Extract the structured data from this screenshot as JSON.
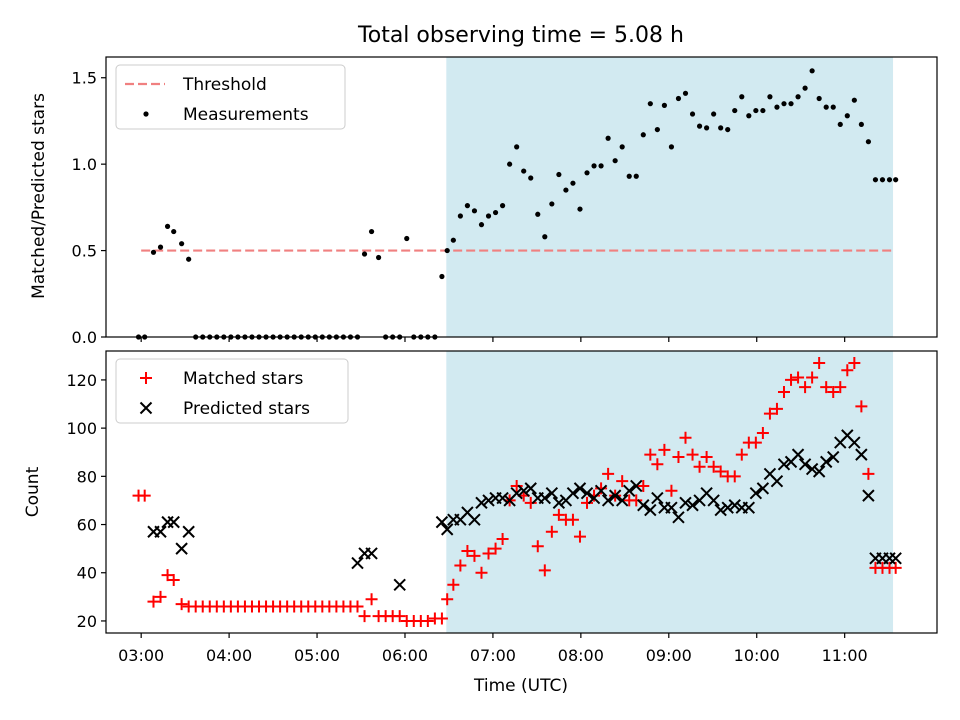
{
  "chart_data": [
    {
      "type": "scatter",
      "title": "Total observing time = 5.08 h",
      "ylabel": "Matched/Predicted stars",
      "xlabel": "",
      "xlim": [
        2.6,
        12.05
      ],
      "ylim": [
        0,
        1.62
      ],
      "yticks": [
        0.0,
        0.5,
        1.0,
        1.5
      ],
      "ytick_labels": [
        "0.0",
        "0.5",
        "1.0",
        "1.5"
      ],
      "xticks": [
        3,
        4,
        5,
        6,
        7,
        8,
        9,
        10,
        11
      ],
      "shaded_region": {
        "x": [
          6.47,
          11.55
        ],
        "color": "#add8e6"
      },
      "legend_position": "upper left",
      "series": [
        {
          "name": "Threshold",
          "style": "dashed-line",
          "color": "#f08080",
          "x": [
            3.0,
            11.55
          ],
          "y": [
            0.5,
            0.5
          ]
        },
        {
          "name": "Measurements",
          "style": "dots",
          "color": "#000000",
          "x": [
            2.97,
            3.04,
            3.14,
            3.22,
            3.3,
            3.37,
            3.46,
            3.54,
            3.62,
            3.7,
            3.78,
            3.86,
            3.94,
            4.02,
            4.1,
            4.18,
            4.26,
            4.34,
            4.42,
            4.5,
            4.58,
            4.66,
            4.74,
            4.82,
            4.9,
            4.98,
            5.06,
            5.14,
            5.22,
            5.3,
            5.38,
            5.46,
            5.54,
            5.62,
            5.7,
            5.78,
            5.86,
            5.94,
            6.02,
            6.1,
            6.18,
            6.26,
            6.34,
            6.42,
            6.48,
            6.55,
            6.63,
            6.71,
            6.79,
            6.87,
            6.95,
            7.03,
            7.11,
            7.19,
            7.27,
            7.35,
            7.43,
            7.51,
            7.59,
            7.67,
            7.75,
            7.83,
            7.91,
            7.99,
            8.07,
            8.15,
            8.23,
            8.31,
            8.39,
            8.47,
            8.55,
            8.63,
            8.71,
            8.79,
            8.87,
            8.95,
            9.03,
            9.11,
            9.19,
            9.27,
            9.35,
            9.43,
            9.51,
            9.59,
            9.67,
            9.75,
            9.83,
            9.91,
            9.99,
            10.07,
            10.15,
            10.23,
            10.31,
            10.39,
            10.47,
            10.55,
            10.63,
            10.71,
            10.79,
            10.87,
            10.95,
            11.03,
            11.11,
            11.19,
            11.27,
            11.35,
            11.43,
            11.51,
            11.58
          ],
          "y": [
            0.0,
            0.0,
            0.49,
            0.52,
            0.64,
            0.61,
            0.54,
            0.45,
            0.0,
            0.0,
            0.0,
            0.0,
            0.0,
            0.0,
            0.0,
            0.0,
            0.0,
            0.0,
            0.0,
            0.0,
            0.0,
            0.0,
            0.0,
            0.0,
            0.0,
            0.0,
            0.0,
            0.0,
            0.0,
            0.0,
            0.0,
            0.0,
            0.48,
            0.61,
            0.46,
            0.0,
            0.0,
            0.0,
            0.57,
            0.0,
            0.0,
            0.0,
            0.0,
            0.35,
            0.5,
            0.56,
            0.7,
            0.76,
            0.73,
            0.65,
            0.7,
            0.72,
            0.76,
            1.0,
            1.1,
            0.96,
            0.92,
            0.71,
            0.58,
            0.77,
            0.94,
            0.85,
            0.89,
            0.74,
            0.95,
            0.99,
            0.99,
            1.15,
            1.02,
            1.1,
            0.93,
            0.93,
            1.17,
            1.35,
            1.2,
            1.34,
            1.1,
            1.38,
            1.41,
            1.29,
            1.22,
            1.21,
            1.29,
            1.21,
            1.2,
            1.31,
            1.39,
            1.28,
            1.31,
            1.31,
            1.39,
            1.33,
            1.35,
            1.35,
            1.39,
            1.44,
            1.54,
            1.38,
            1.33,
            1.33,
            1.23,
            1.28,
            1.37,
            1.23,
            1.13,
            0.91,
            0.91,
            0.91,
            0.91
          ]
        }
      ]
    },
    {
      "type": "scatter",
      "title": "",
      "ylabel": "Count",
      "xlabel": "Time (UTC)",
      "xlim": [
        2.6,
        12.05
      ],
      "ylim": [
        15,
        132
      ],
      "yticks": [
        20,
        40,
        60,
        80,
        100,
        120
      ],
      "ytick_labels": [
        "20",
        "40",
        "60",
        "80",
        "100",
        "120"
      ],
      "xticks": [
        3,
        4,
        5,
        6,
        7,
        8,
        9,
        10,
        11
      ],
      "xtick_labels": [
        "03:00",
        "04:00",
        "05:00",
        "06:00",
        "07:00",
        "08:00",
        "09:00",
        "10:00",
        "11:00"
      ],
      "shaded_region": {
        "x": [
          6.47,
          11.55
        ],
        "color": "#add8e6"
      },
      "legend_position": "upper left",
      "series": [
        {
          "name": "Matched stars",
          "marker": "plus",
          "color": "#ff0000",
          "x": [
            2.97,
            3.04,
            3.14,
            3.22,
            3.3,
            3.37,
            3.46,
            3.54,
            3.62,
            3.7,
            3.78,
            3.86,
            3.94,
            4.02,
            4.1,
            4.18,
            4.26,
            4.34,
            4.42,
            4.5,
            4.58,
            4.66,
            4.74,
            4.82,
            4.9,
            4.98,
            5.06,
            5.14,
            5.22,
            5.3,
            5.38,
            5.46,
            5.54,
            5.62,
            5.7,
            5.78,
            5.86,
            5.94,
            6.02,
            6.1,
            6.18,
            6.26,
            6.34,
            6.42,
            6.48,
            6.55,
            6.63,
            6.71,
            6.79,
            6.87,
            6.95,
            7.03,
            7.11,
            7.19,
            7.27,
            7.35,
            7.43,
            7.51,
            7.59,
            7.67,
            7.75,
            7.83,
            7.91,
            7.99,
            8.07,
            8.15,
            8.23,
            8.31,
            8.39,
            8.47,
            8.55,
            8.63,
            8.71,
            8.79,
            8.87,
            8.95,
            9.03,
            9.11,
            9.19,
            9.27,
            9.35,
            9.43,
            9.51,
            9.59,
            9.67,
            9.75,
            9.83,
            9.91,
            9.99,
            10.07,
            10.15,
            10.23,
            10.31,
            10.39,
            10.47,
            10.55,
            10.63,
            10.71,
            10.79,
            10.87,
            10.95,
            11.03,
            11.11,
            11.19,
            11.27,
            11.35,
            11.43,
            11.51,
            11.58
          ],
          "y": [
            72,
            72,
            28,
            30,
            39,
            37,
            27,
            26,
            26,
            26,
            26,
            26,
            26,
            26,
            26,
            26,
            26,
            26,
            26,
            26,
            26,
            26,
            26,
            26,
            26,
            26,
            26,
            26,
            26,
            26,
            26,
            26,
            22,
            29,
            22,
            22,
            22,
            22,
            20,
            20,
            20,
            20,
            21,
            21,
            29,
            35,
            43,
            49,
            47,
            40,
            48,
            50,
            54,
            70,
            76,
            72,
            69,
            51,
            41,
            57,
            64,
            62,
            62,
            55,
            69,
            72,
            75,
            81,
            72,
            78,
            70,
            70,
            76,
            89,
            85,
            91,
            74,
            88,
            96,
            89,
            84,
            88,
            84,
            82,
            80,
            80,
            89,
            94,
            94,
            98,
            106,
            108,
            115,
            120,
            121,
            117,
            121,
            127,
            117,
            115,
            117,
            124,
            127,
            109,
            81,
            42,
            42,
            42,
            42
          ]
        },
        {
          "name": "Predicted stars",
          "marker": "x",
          "color": "#000000",
          "x": [
            3.14,
            3.22,
            3.3,
            3.37,
            3.46,
            3.54,
            5.46,
            5.54,
            5.62,
            5.94,
            6.42,
            6.48,
            6.55,
            6.63,
            6.71,
            6.79,
            6.87,
            6.95,
            7.03,
            7.11,
            7.19,
            7.27,
            7.35,
            7.43,
            7.51,
            7.59,
            7.67,
            7.75,
            7.83,
            7.91,
            7.99,
            8.07,
            8.15,
            8.23,
            8.31,
            8.39,
            8.47,
            8.55,
            8.63,
            8.71,
            8.79,
            8.87,
            8.95,
            9.03,
            9.11,
            9.19,
            9.27,
            9.35,
            9.43,
            9.51,
            9.59,
            9.67,
            9.75,
            9.83,
            9.91,
            9.99,
            10.07,
            10.15,
            10.23,
            10.31,
            10.39,
            10.47,
            10.55,
            10.63,
            10.71,
            10.79,
            10.87,
            10.95,
            11.03,
            11.11,
            11.19,
            11.27,
            11.35,
            11.43,
            11.51,
            11.58
          ],
          "y": [
            57,
            57,
            61,
            61,
            50,
            57,
            44,
            48,
            48,
            35,
            61,
            58,
            62,
            62,
            65,
            62,
            69,
            70,
            71,
            71,
            70,
            73,
            74,
            75,
            71,
            71,
            73,
            69,
            70,
            73,
            75,
            73,
            71,
            74,
            70,
            72,
            70,
            74,
            76,
            68,
            66,
            71,
            67,
            67,
            63,
            69,
            68,
            70,
            73,
            70,
            66,
            67,
            68,
            67,
            67,
            73,
            75,
            81,
            78,
            85,
            86,
            89,
            85,
            83,
            82,
            86,
            88,
            94,
            97,
            94,
            89,
            72,
            46,
            46,
            46,
            46
          ]
        }
      ]
    }
  ]
}
